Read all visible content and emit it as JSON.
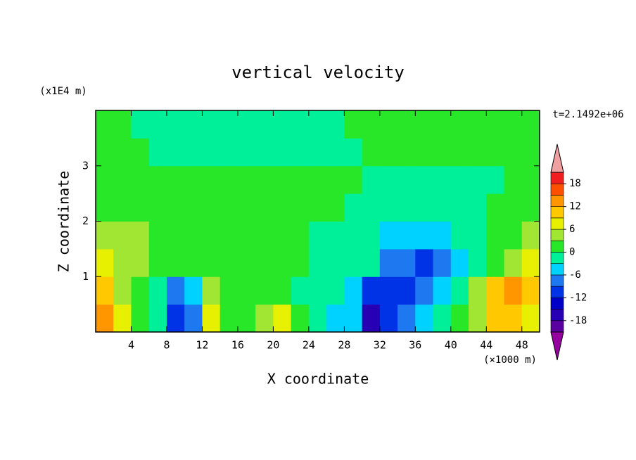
{
  "chart_data": {
    "type": "contourf",
    "title": "vertical velocity",
    "x_label": "X coordinate",
    "y_label": "Z coordinate",
    "x_unit": "(×1000 m)",
    "y_unit": "(x1E4 m)",
    "annotation": "t=2.1492e+06",
    "xlim": [
      0,
      50
    ],
    "ylim": [
      0,
      4
    ],
    "xticks": [
      4,
      8,
      12,
      16,
      20,
      24,
      28,
      32,
      36,
      40,
      44,
      48
    ],
    "yticks": [
      1,
      2,
      3
    ],
    "x": [
      1,
      3,
      5,
      7,
      9,
      11,
      13,
      15,
      17,
      19,
      21,
      23,
      25,
      27,
      29,
      31,
      33,
      35,
      37,
      39,
      41,
      43,
      45,
      47,
      49
    ],
    "y": [
      0.25,
      0.75,
      1.25,
      1.75,
      2.25,
      2.75,
      3.25,
      3.75
    ],
    "z": [
      [
        13,
        7,
        1,
        -1,
        -10,
        -7,
        7,
        1,
        1,
        4,
        7,
        1,
        -1,
        -4,
        -4,
        -16,
        -10,
        -7,
        -4,
        -1,
        1,
        4,
        10,
        10,
        7
      ],
      [
        10,
        4,
        1,
        -1,
        -7,
        -4,
        4,
        1,
        1,
        1,
        1,
        -1,
        -1,
        -1,
        -4,
        -10,
        -10,
        -10,
        -7,
        -4,
        -1,
        4,
        10,
        13,
        10
      ],
      [
        7,
        4,
        4,
        1,
        1,
        1,
        1,
        1,
        1,
        1,
        1,
        1,
        -1,
        -1,
        -1,
        -1,
        -7,
        -7,
        -10,
        -7,
        -4,
        -1,
        1,
        4,
        7
      ],
      [
        4,
        4,
        4,
        1,
        1,
        1,
        1,
        1,
        1,
        1,
        1,
        1,
        -1,
        -1,
        -1,
        -1,
        -4,
        -4,
        -4,
        -4,
        -1,
        -1,
        1,
        1,
        4
      ],
      [
        1,
        1,
        1,
        1,
        1,
        1,
        1,
        1,
        1,
        1,
        1,
        1,
        1,
        1,
        -1,
        -1,
        -1,
        -1,
        -1,
        -1,
        -1,
        -1,
        1,
        1,
        1
      ],
      [
        1,
        1,
        1,
        1,
        1,
        1,
        1,
        1,
        1,
        1,
        1,
        1,
        1,
        1,
        1,
        -1,
        -1,
        -1,
        -1,
        -1,
        -1,
        -1,
        -1,
        1,
        1
      ],
      [
        1,
        1,
        1,
        -1,
        -1,
        -1,
        -1,
        -1,
        -1,
        -1,
        -1,
        -1,
        -1,
        -1,
        -1,
        1,
        1,
        1,
        1,
        1,
        1,
        1,
        1,
        1,
        1
      ],
      [
        1,
        1,
        -1,
        -1,
        -1,
        -1,
        -1,
        -1,
        -1,
        -1,
        -1,
        -1,
        -1,
        -1,
        1,
        1,
        1,
        1,
        1,
        1,
        1,
        1,
        1,
        1,
        1
      ]
    ],
    "levels": [
      -21,
      -18,
      -15,
      -12,
      -9,
      -6,
      -3,
      0,
      3,
      6,
      9,
      12,
      15,
      18,
      21
    ],
    "colors": [
      "#5a00a0",
      "#2800b4",
      "#0000c8",
      "#0032e6",
      "#1e78f0",
      "#00d2ff",
      "#00f09a",
      "#28e628",
      "#a0e632",
      "#e6f000",
      "#ffc800",
      "#ff9600",
      "#ff5000",
      "#f01e1e"
    ],
    "extend_colors": [
      "#9600a0",
      "#f0a0a0"
    ],
    "colorbar_ticks": [
      -18,
      -12,
      -6,
      0,
      6,
      12,
      18
    ]
  }
}
